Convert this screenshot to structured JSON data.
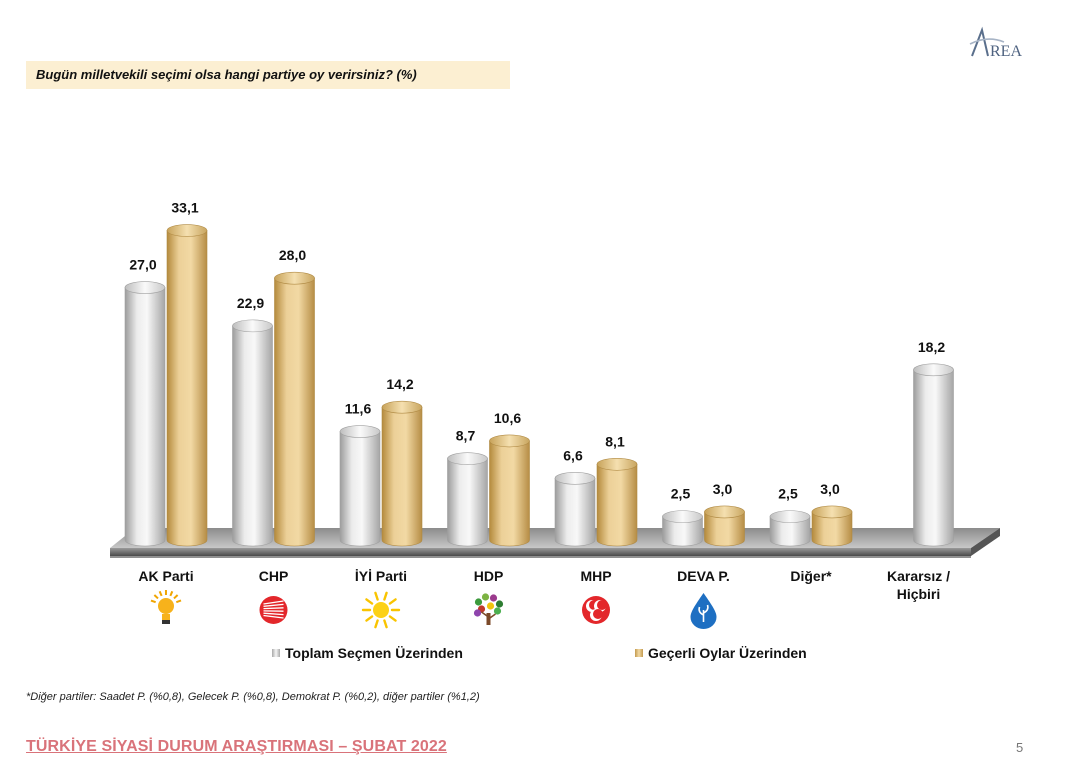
{
  "question": "Bugün milletvekili seçimi olsa hangi partiye oy verirsiniz? (%)",
  "logo": {
    "text": "REA",
    "initial": "A"
  },
  "chart_data": {
    "type": "bar",
    "categories": [
      "AK Parti",
      "CHP",
      "İYİ Parti",
      "HDP",
      "MHP",
      "DEVA P.",
      "Diğer*",
      "Kararsız / Hiçbiri"
    ],
    "category_lines": [
      [
        "AK Parti"
      ],
      [
        "CHP"
      ],
      [
        "İYİ Parti"
      ],
      [
        "HDP"
      ],
      [
        "MHP"
      ],
      [
        "DEVA P."
      ],
      [
        "Diğer*"
      ],
      [
        "Kararsız /",
        "Hiçbiri"
      ]
    ],
    "series": [
      {
        "name": "Toplam Seçmen Üzerinden",
        "values": [
          27.0,
          22.9,
          11.6,
          8.7,
          6.6,
          2.5,
          2.5,
          18.2
        ],
        "labels": [
          "27,0",
          "22,9",
          "11,6",
          "8,7",
          "6,6",
          "2,5",
          "2,5",
          "18,2"
        ],
        "color": "#d6d6d6"
      },
      {
        "name": "Geçerli Oylar Üzerinden",
        "values": [
          33.1,
          28.0,
          14.2,
          10.6,
          8.1,
          3.0,
          3.0,
          null
        ],
        "labels": [
          "33,1",
          "28,0",
          "14,2",
          "10,6",
          "8,1",
          "3,0",
          "3,0",
          ""
        ],
        "color": "#e3c17c"
      }
    ],
    "ylim": [
      0,
      35
    ],
    "party_icons": [
      "lightbulb-icon",
      "six-arrows-icon",
      "sun-icon",
      "tree-icon",
      "crescents-icon",
      "water-drop-icon",
      "",
      ""
    ],
    "legend_position": "bottom",
    "grid": false
  },
  "footnote": "*Diğer partiler: Saadet P. (%0,8), Gelecek P. (%0,8), Demokrat P. (%0,2), diğer partiler (%1,2)",
  "footer": {
    "title": "TÜRKİYE SİYASİ DURUM ARAŞTIRMASI – ŞUBAT 2022",
    "page": "5"
  }
}
